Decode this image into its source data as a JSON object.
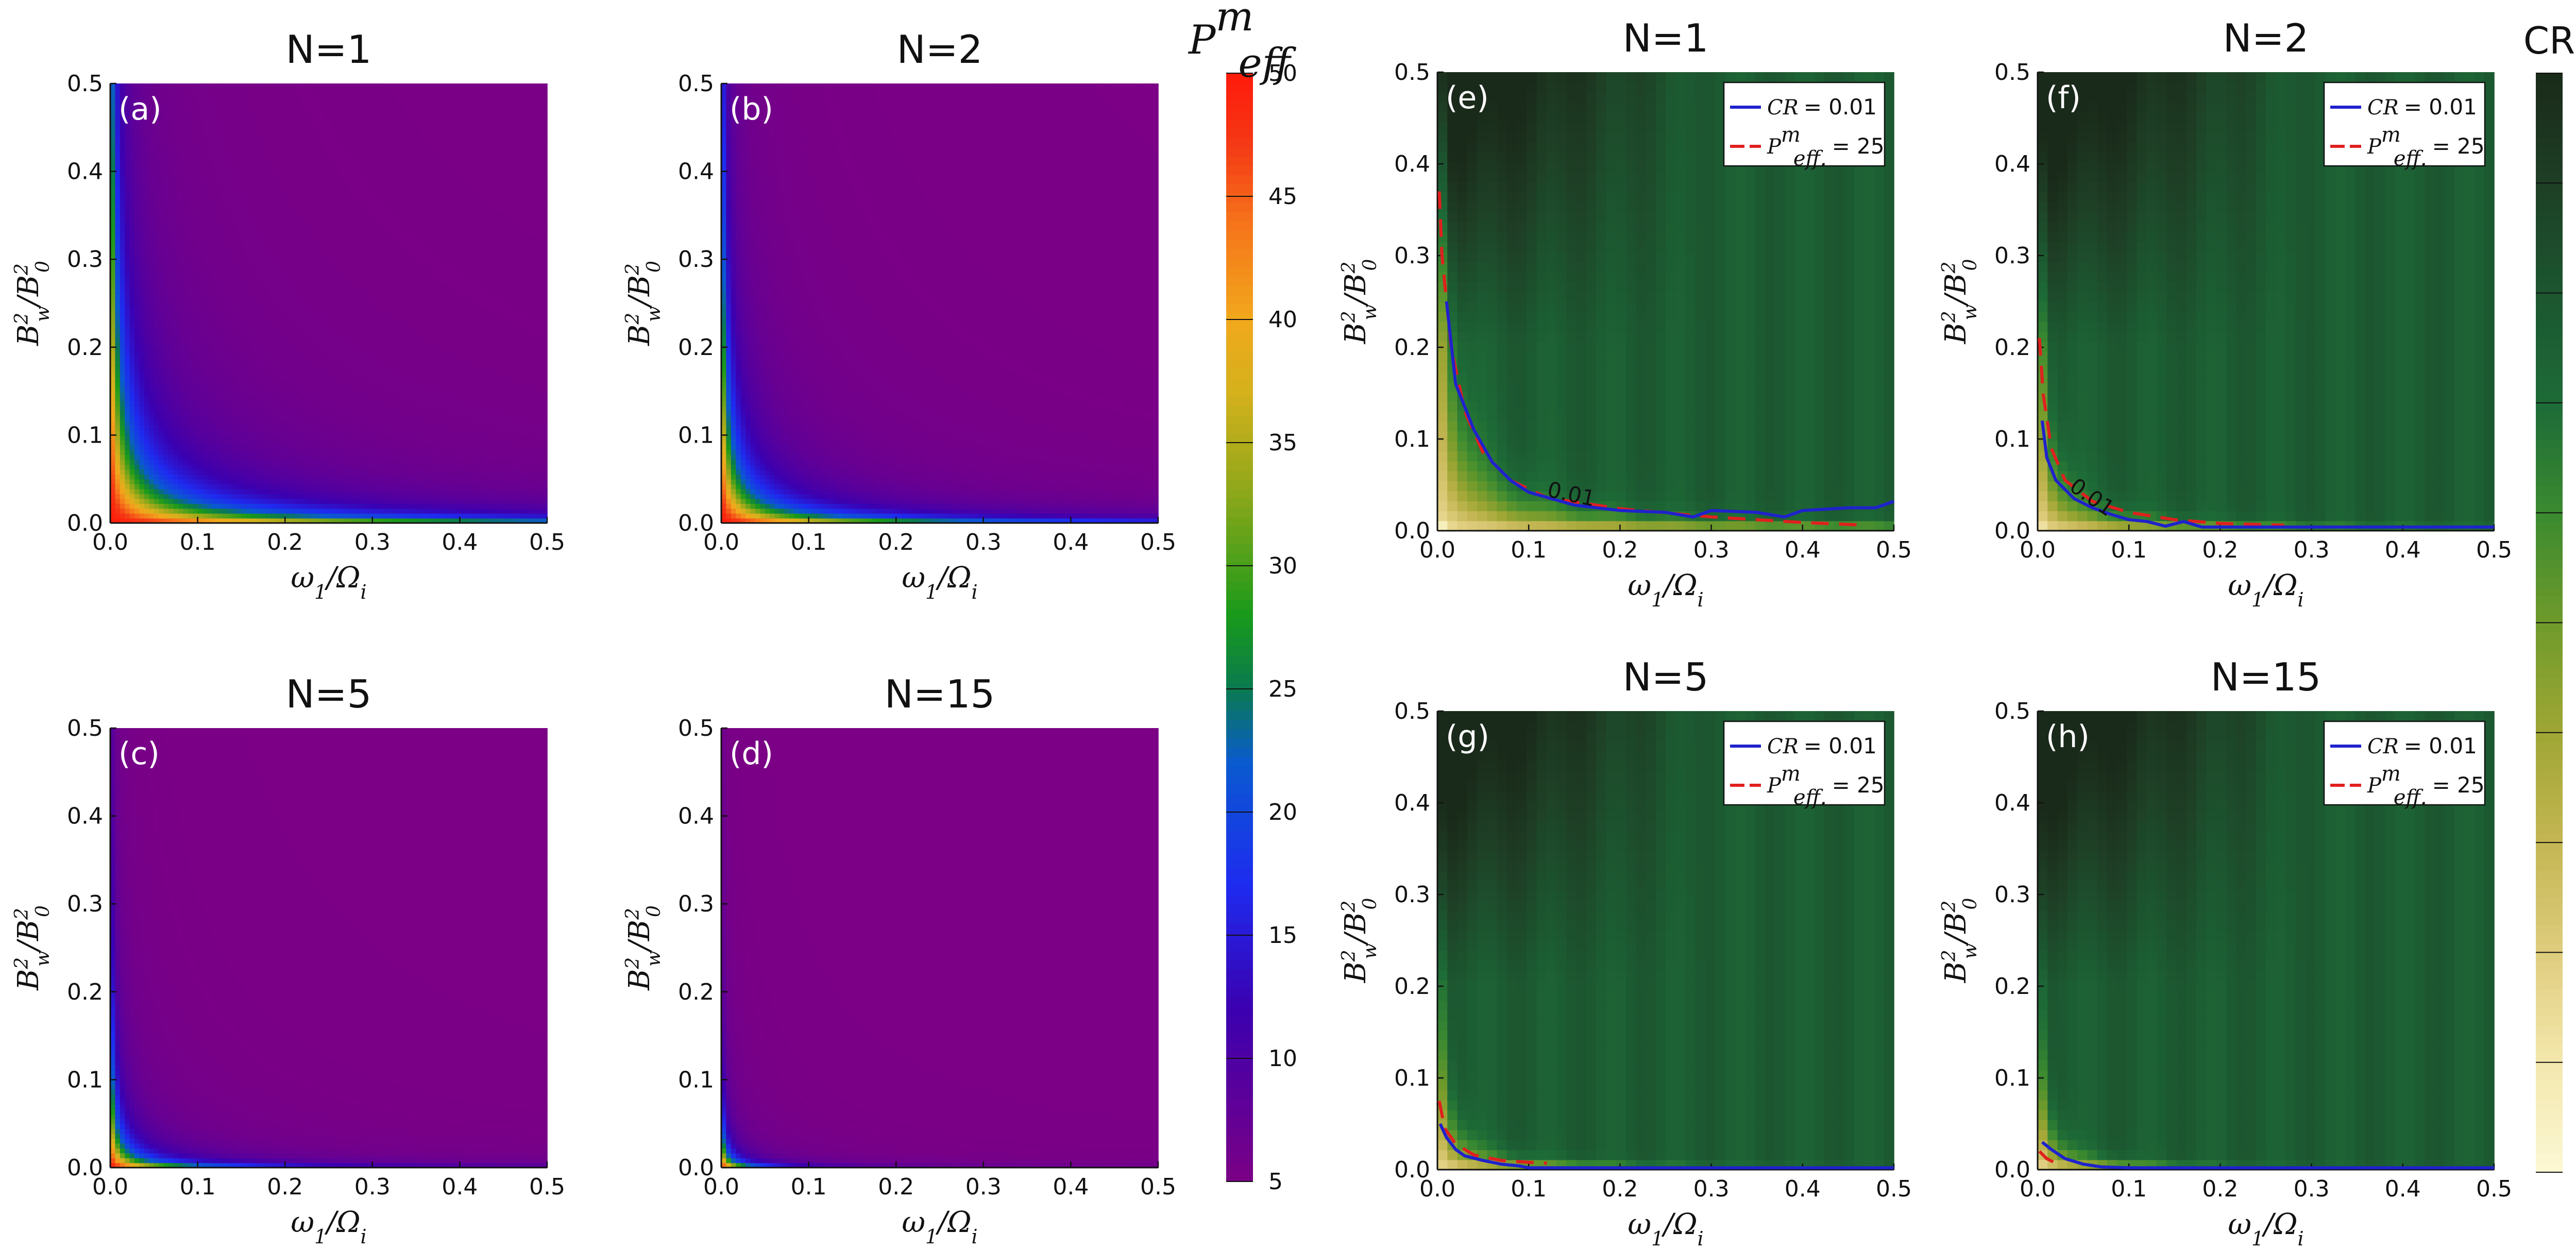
{
  "chart_data": [
    {
      "id": "a",
      "type": "heatmap",
      "title": "N=1",
      "panel_label": "(a)",
      "xlabel": "ω1/Ωi",
      "ylabel": "B_w^2/B_0^2",
      "xlim": [
        0,
        0.5
      ],
      "ylim": [
        0,
        0.5
      ],
      "xticks": [
        "0.0",
        "0.1",
        "0.2",
        "0.3",
        "0.4",
        "0.5"
      ],
      "yticks": [
        "0.0",
        "0.1",
        "0.2",
        "0.3",
        "0.4",
        "0.5"
      ],
      "colorbar": "P_eff^m",
      "decay": 1.0
    },
    {
      "id": "b",
      "type": "heatmap",
      "title": "N=2",
      "panel_label": "(b)",
      "xlabel": "ω1/Ωi",
      "ylabel": "B_w^2/B_0^2",
      "xlim": [
        0,
        0.5
      ],
      "ylim": [
        0,
        0.5
      ],
      "xticks": [
        "0.0",
        "0.1",
        "0.2",
        "0.3",
        "0.4",
        "0.5"
      ],
      "yticks": [
        "0.0",
        "0.1",
        "0.2",
        "0.3",
        "0.4",
        "0.5"
      ],
      "colorbar": "P_eff^m",
      "decay": 0.55
    },
    {
      "id": "c",
      "type": "heatmap",
      "title": "N=5",
      "panel_label": "(c)",
      "xlabel": "ω1/Ωi",
      "ylabel": "B_w^2/B_0^2",
      "xlim": [
        0,
        0.5
      ],
      "ylim": [
        0,
        0.5
      ],
      "xticks": [
        "0.0",
        "0.1",
        "0.2",
        "0.3",
        "0.4",
        "0.5"
      ],
      "yticks": [
        "0.0",
        "0.1",
        "0.2",
        "0.3",
        "0.4",
        "0.5"
      ],
      "colorbar": "P_eff^m",
      "decay": 0.2
    },
    {
      "id": "d",
      "type": "heatmap",
      "title": "N=15",
      "panel_label": "(d)",
      "xlabel": "ω1/Ωi",
      "ylabel": "B_w^2/B_0^2",
      "xlim": [
        0,
        0.5
      ],
      "ylim": [
        0,
        0.5
      ],
      "xticks": [
        "0.0",
        "0.1",
        "0.2",
        "0.3",
        "0.4",
        "0.5"
      ],
      "yticks": [
        "0.0",
        "0.1",
        "0.2",
        "0.3",
        "0.4",
        "0.5"
      ],
      "colorbar": "P_eff^m",
      "decay": 0.07
    },
    {
      "id": "e",
      "type": "heatmap",
      "title": "N=1",
      "panel_label": "(e)",
      "xlabel": "ω1/Ωi",
      "ylabel": "B_w^2/B_0^2",
      "xlim": [
        0,
        0.5
      ],
      "ylim": [
        0,
        0.5
      ],
      "xticks": [
        "0.0",
        "0.1",
        "0.2",
        "0.3",
        "0.4",
        "0.5"
      ],
      "yticks": [
        "0.0",
        "0.1",
        "0.2",
        "0.3",
        "0.4",
        "0.5"
      ],
      "colorbar": "CR",
      "boundary_k": 0.0025,
      "contour_label": "0.01",
      "cr_contour": [
        [
          0.01,
          0.25
        ],
        [
          0.02,
          0.16
        ],
        [
          0.04,
          0.11
        ],
        [
          0.06,
          0.075
        ],
        [
          0.08,
          0.055
        ],
        [
          0.1,
          0.042
        ],
        [
          0.15,
          0.028
        ],
        [
          0.2,
          0.022
        ],
        [
          0.25,
          0.02
        ],
        [
          0.28,
          0.015
        ],
        [
          0.3,
          0.022
        ],
        [
          0.35,
          0.02
        ],
        [
          0.38,
          0.015
        ],
        [
          0.4,
          0.022
        ],
        [
          0.45,
          0.025
        ],
        [
          0.48,
          0.025
        ],
        [
          0.5,
          0.032
        ]
      ],
      "peff_contour": [
        [
          0.002,
          0.37
        ],
        [
          0.005,
          0.3
        ],
        [
          0.015,
          0.2
        ],
        [
          0.03,
          0.13
        ],
        [
          0.05,
          0.085
        ],
        [
          0.08,
          0.055
        ],
        [
          0.12,
          0.036
        ],
        [
          0.2,
          0.024
        ],
        [
          0.3,
          0.015
        ],
        [
          0.4,
          0.009
        ],
        [
          0.47,
          0.006
        ]
      ],
      "legend": [
        {
          "label_math": "CR",
          "value": "= 0.01",
          "color": "#1f22cc"
        },
        {
          "label_math": "P",
          "value": "= 25",
          "color": "#e0201e"
        }
      ]
    },
    {
      "id": "f",
      "type": "heatmap",
      "title": "N=2",
      "panel_label": "(f)",
      "xlabel": "ω1/Ωi",
      "ylabel": "B_w^2/B_0^2",
      "xlim": [
        0,
        0.5
      ],
      "ylim": [
        0,
        0.5
      ],
      "xticks": [
        "0.0",
        "0.1",
        "0.2",
        "0.3",
        "0.4",
        "0.5"
      ],
      "yticks": [
        "0.0",
        "0.1",
        "0.2",
        "0.3",
        "0.4",
        "0.5"
      ],
      "colorbar": "CR",
      "boundary_k": 0.0012,
      "contour_label": "0.01",
      "cr_contour": [
        [
          0.005,
          0.12
        ],
        [
          0.01,
          0.08
        ],
        [
          0.02,
          0.055
        ],
        [
          0.04,
          0.035
        ],
        [
          0.06,
          0.025
        ],
        [
          0.08,
          0.018
        ],
        [
          0.1,
          0.012
        ],
        [
          0.12,
          0.01
        ],
        [
          0.14,
          0.005
        ],
        [
          0.16,
          0.01
        ],
        [
          0.18,
          0.004
        ],
        [
          0.2,
          0.004
        ],
        [
          0.3,
          0.004
        ],
        [
          0.5,
          0.004
        ]
      ],
      "peff_contour": [
        [
          0.002,
          0.21
        ],
        [
          0.006,
          0.15
        ],
        [
          0.015,
          0.09
        ],
        [
          0.03,
          0.055
        ],
        [
          0.06,
          0.032
        ],
        [
          0.1,
          0.02
        ],
        [
          0.15,
          0.012
        ],
        [
          0.2,
          0.008
        ],
        [
          0.27,
          0.006
        ]
      ],
      "legend": [
        {
          "label_math": "CR",
          "value": "= 0.01",
          "color": "#1f22cc"
        },
        {
          "label_math": "P",
          "value": "= 25",
          "color": "#e0201e"
        }
      ]
    },
    {
      "id": "g",
      "type": "heatmap",
      "title": "N=5",
      "panel_label": "(g)",
      "xlabel": "ω1/Ωi",
      "ylabel": "B_w^2/B_0^2",
      "xlim": [
        0,
        0.5
      ],
      "ylim": [
        0,
        0.5
      ],
      "xticks": [
        "0.0",
        "0.1",
        "0.2",
        "0.3",
        "0.4",
        "0.5"
      ],
      "yticks": [
        "0.0",
        "0.1",
        "0.2",
        "0.3",
        "0.4",
        "0.5"
      ],
      "colorbar": "CR",
      "boundary_k": 0.0008,
      "cr_contour": [
        [
          0.003,
          0.05
        ],
        [
          0.01,
          0.035
        ],
        [
          0.02,
          0.022
        ],
        [
          0.03,
          0.015
        ],
        [
          0.05,
          0.01
        ],
        [
          0.07,
          0.006
        ],
        [
          0.09,
          0.004
        ],
        [
          0.1,
          0.002
        ],
        [
          0.2,
          0.002
        ],
        [
          0.5,
          0.002
        ]
      ],
      "peff_contour": [
        [
          0.002,
          0.075
        ],
        [
          0.008,
          0.045
        ],
        [
          0.02,
          0.028
        ],
        [
          0.04,
          0.016
        ],
        [
          0.07,
          0.01
        ],
        [
          0.1,
          0.008
        ],
        [
          0.12,
          0.007
        ]
      ],
      "legend": [
        {
          "label_math": "CR",
          "value": "= 0.01",
          "color": "#1f22cc"
        },
        {
          "label_math": "P",
          "value": "= 25",
          "color": "#e0201e"
        }
      ]
    },
    {
      "id": "h",
      "type": "heatmap",
      "title": "N=15",
      "panel_label": "(h)",
      "xlabel": "ω1/Ωi",
      "ylabel": "B_w^2/B_0^2",
      "xlim": [
        0,
        0.5
      ],
      "ylim": [
        0,
        0.5
      ],
      "xticks": [
        "0.0",
        "0.1",
        "0.2",
        "0.3",
        "0.4",
        "0.5"
      ],
      "yticks": [
        "0.0",
        "0.1",
        "0.2",
        "0.3",
        "0.4",
        "0.5"
      ],
      "colorbar": "CR",
      "boundary_k": 0.0006,
      "cr_contour": [
        [
          0.005,
          0.03
        ],
        [
          0.015,
          0.022
        ],
        [
          0.03,
          0.012
        ],
        [
          0.05,
          0.006
        ],
        [
          0.07,
          0.003
        ],
        [
          0.1,
          0.002
        ],
        [
          0.5,
          0.002
        ]
      ],
      "peff_contour": [
        [
          0.002,
          0.02
        ],
        [
          0.01,
          0.012
        ],
        [
          0.02,
          0.007
        ]
      ],
      "legend": [
        {
          "label_math": "CR",
          "value": "= 0.01",
          "color": "#1f22cc"
        },
        {
          "label_math": "P",
          "value": "= 25",
          "color": "#e0201e"
        }
      ]
    }
  ],
  "colorbars": {
    "peff": {
      "title": "P",
      "title_sup": "m",
      "title_sub": "eff",
      "min": 5,
      "max": 50,
      "ticks": [
        "5",
        "10",
        "15",
        "20",
        "25",
        "30",
        "35",
        "40",
        "45",
        "50"
      ],
      "stops": [
        {
          "v": 5,
          "c": "#7b0085"
        },
        {
          "v": 12,
          "c": "#3b00b0"
        },
        {
          "v": 17,
          "c": "#1e2bf0"
        },
        {
          "v": 22,
          "c": "#0a5ad0"
        },
        {
          "v": 25,
          "c": "#0a7a50"
        },
        {
          "v": 28,
          "c": "#199a1a"
        },
        {
          "v": 33,
          "c": "#8ea71a"
        },
        {
          "v": 37,
          "c": "#d4b11c"
        },
        {
          "v": 40,
          "c": "#f1a81c"
        },
        {
          "v": 44,
          "c": "#f6731a"
        },
        {
          "v": 47,
          "c": "#f43a16"
        },
        {
          "v": 50,
          "c": "#ff1a0a"
        }
      ]
    },
    "cr": {
      "title": "CR",
      "min": 0.0,
      "max": 1.0,
      "ticks": [
        "0.0",
        "0.1",
        "0.2",
        "0.3",
        "0.4",
        "0.5",
        "0.6",
        "0.7",
        "0.8",
        "0.9",
        "1.0"
      ],
      "stops": [
        {
          "v": 0.0,
          "c": "#fcf8d4"
        },
        {
          "v": 0.1,
          "c": "#f3e7ad"
        },
        {
          "v": 0.2,
          "c": "#dfcd7e"
        },
        {
          "v": 0.3,
          "c": "#c3b653"
        },
        {
          "v": 0.4,
          "c": "#9fa634"
        },
        {
          "v": 0.5,
          "c": "#6f9a2b"
        },
        {
          "v": 0.6,
          "c": "#3b8a30"
        },
        {
          "v": 0.7,
          "c": "#1d6b37"
        },
        {
          "v": 0.8,
          "c": "#1c5630"
        },
        {
          "v": 0.9,
          "c": "#1e3f25"
        },
        {
          "v": 1.0,
          "c": "#1a2a1a"
        }
      ]
    }
  }
}
